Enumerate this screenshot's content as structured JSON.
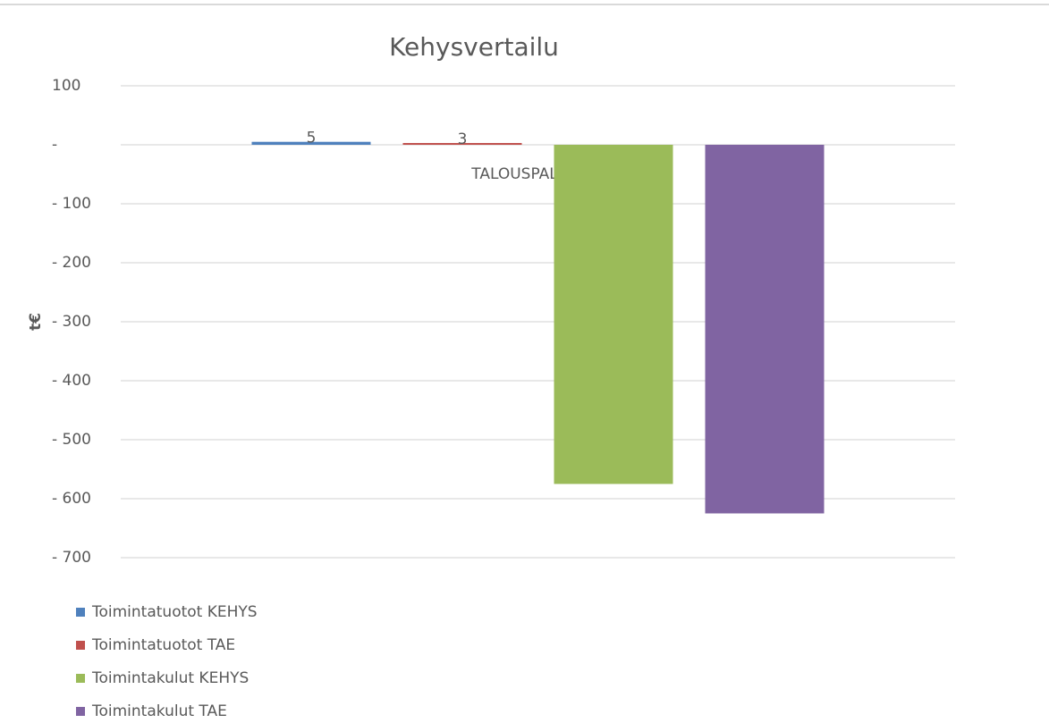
{
  "chart_data": {
    "type": "bar",
    "title": "Kehysvertailu",
    "y_label": "t€",
    "categories": [
      "TALOUSPALVELUT"
    ],
    "series": [
      {
        "name": "Toimintatuotot KEHYS",
        "color": "#4f81bd",
        "values": [
          5
        ],
        "show_labels": true
      },
      {
        "name": "Toimintatuotot TAE",
        "color": "#c0504d",
        "values": [
          3
        ],
        "show_labels": true
      },
      {
        "name": "Toimintakulut KEHYS",
        "color": "#9bbb59",
        "values": [
          -575
        ],
        "show_labels": false
      },
      {
        "name": "Toimintakulut TAE",
        "color": "#8064a2",
        "values": [
          -625
        ],
        "show_labels": false
      }
    ],
    "ylim": [
      -700,
      100
    ],
    "yticks": [
      100,
      {
        "value": 0,
        "label": "-"
      },
      {
        "value": -100,
        "label": "- 100"
      },
      {
        "value": -200,
        "label": "- 200"
      },
      {
        "value": -300,
        "label": "- 300"
      },
      {
        "value": -400,
        "label": "- 400"
      },
      {
        "value": -500,
        "label": "- 500"
      },
      {
        "value": -600,
        "label": "- 600"
      },
      {
        "value": -700,
        "label": "- 700"
      }
    ],
    "grid": true,
    "legend": "bottom-left"
  }
}
